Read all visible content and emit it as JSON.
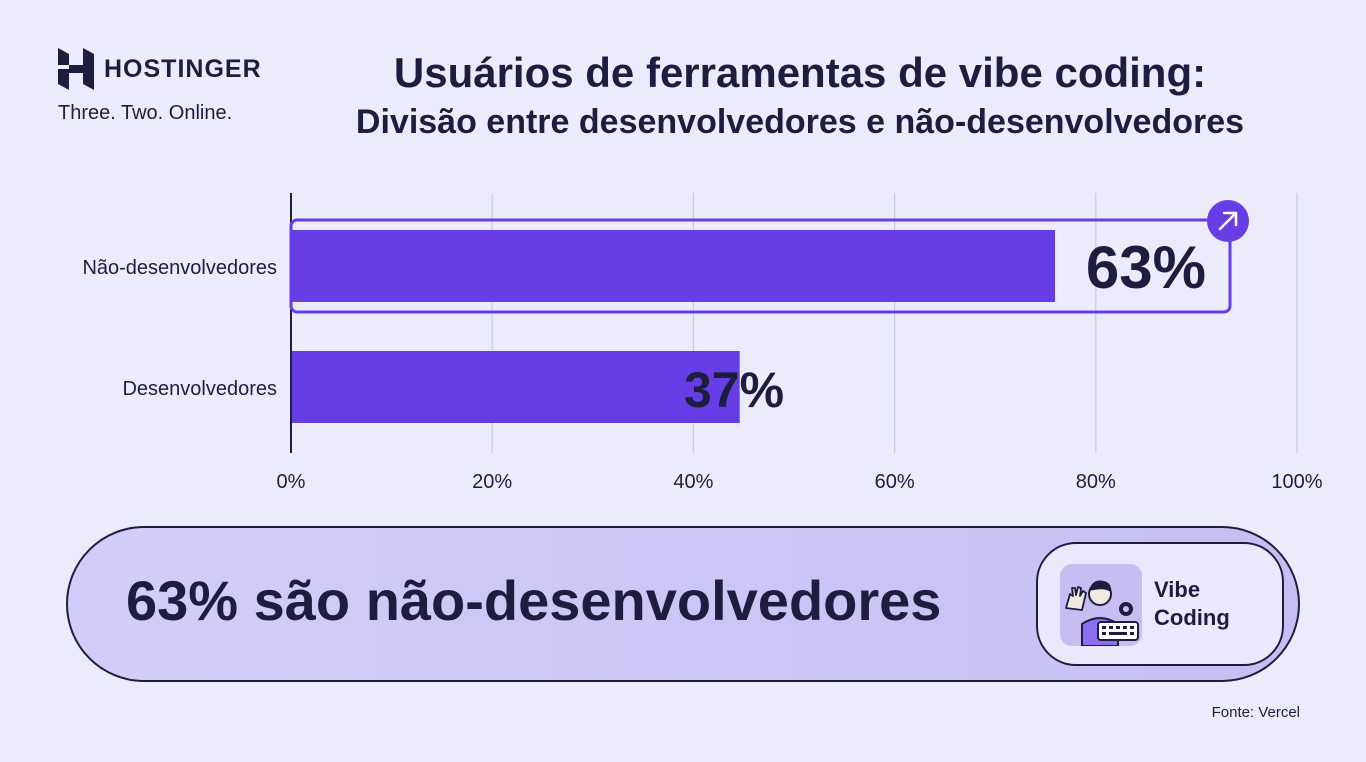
{
  "brand": {
    "name": "HOSTINGER",
    "tagline": "Three. Two. Online."
  },
  "header": {
    "title": "Usuários de ferramentas de vibe coding:",
    "subtitle": "Divisão entre desenvolvedores e não-desenvolvedores"
  },
  "chart_data": {
    "type": "bar",
    "orientation": "horizontal",
    "title": "Usuários de ferramentas de vibe coding:",
    "subtitle": "Divisão entre desenvolvedores e não-desenvolvedores",
    "categories": [
      "Não-desenvolvedores",
      "Desenvolvedores"
    ],
    "values": [
      63,
      37
    ],
    "value_labels": [
      "63%",
      "37%"
    ],
    "xlim": [
      0,
      100
    ],
    "xticks": [
      "0%",
      "20%",
      "40%",
      "60%",
      "80%",
      "100%"
    ],
    "grid": true,
    "highlighted_category": "Não-desenvolvedores",
    "colors": {
      "bar": "#673de6",
      "outline": "#673de6",
      "grid": "#cbcbe0",
      "axis": "#1d1e3f"
    }
  },
  "callout": {
    "text": "63% são não-desenvolvedores",
    "badge_line1": "Vibe",
    "badge_line2": "Coding",
    "badge_icon": "person-waving-with-keyboard-and-gear-icon"
  },
  "footer": {
    "source": "Fonte: Vercel"
  },
  "colors": {
    "background": "#ebebfb",
    "accent": "#673de6",
    "text": "#1d1e3f"
  }
}
